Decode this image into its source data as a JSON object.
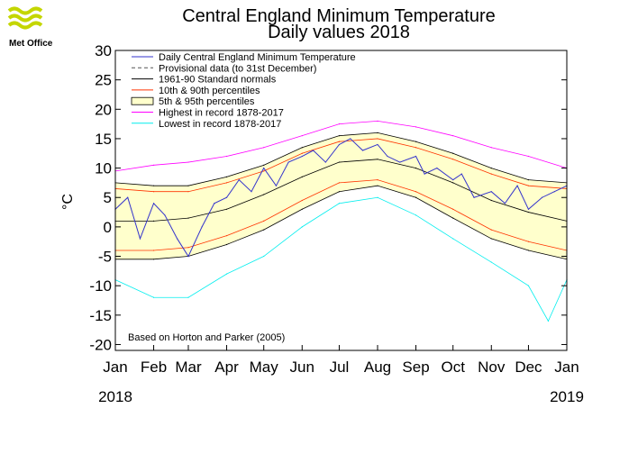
{
  "logo": {
    "text": "Met Office",
    "color": "#c4d600"
  },
  "chart_data": {
    "type": "line",
    "title": "Central England Minimum Temperature",
    "subtitle": "Daily values 2018",
    "ylabel": "°C",
    "ylim": [
      -21,
      30
    ],
    "yticks": [
      30,
      25,
      20,
      15,
      10,
      5,
      0,
      -5,
      -10,
      -15,
      -20
    ],
    "ytick_labels": [
      "30",
      "25",
      "20",
      "15",
      "10",
      "5",
      "0",
      "-5",
      "-10",
      "-15",
      "-20"
    ],
    "xlim": [
      0,
      365
    ],
    "month_labels": [
      "Jan",
      "Feb",
      "Mar",
      "Apr",
      "May",
      "Jun",
      "Jul",
      "Aug",
      "Sep",
      "Oct",
      "Nov",
      "Dec",
      "Jan"
    ],
    "month_starts": [
      0,
      31,
      59,
      90,
      120,
      151,
      181,
      212,
      243,
      273,
      304,
      334,
      365
    ],
    "year_left": "2018",
    "year_right": "2019",
    "note": "Based on Horton and Parker (2005)",
    "legend_position": "top-left",
    "legend": [
      {
        "label": "Daily Central England Minimum Temperature",
        "color": "#3333cc",
        "style": "line"
      },
      {
        "label": "Provisional data (to 31st December)",
        "color": "#555555",
        "style": "dashed"
      },
      {
        "label": "1961-90 Standard normals",
        "color": "#000000",
        "style": "line"
      },
      {
        "label": "10th & 90th percentiles",
        "color": "#ff3300",
        "style": "line"
      },
      {
        "label": "5th & 95th percentiles",
        "color": "#ffffcc",
        "style": "box"
      },
      {
        "label": "Highest in record 1878-2017",
        "color": "#ff00ff",
        "style": "line"
      },
      {
        "label": "Lowest in record 1878-2017",
        "color": "#00eeee",
        "style": "line"
      }
    ],
    "series": [
      {
        "name": "Highest in record 1878-2017",
        "color": "#ff00ff",
        "x": [
          0,
          31,
          59,
          90,
          120,
          151,
          181,
          212,
          243,
          273,
          304,
          334,
          365
        ],
        "y": [
          9.5,
          10.5,
          11,
          12,
          13.5,
          15.5,
          17.5,
          18,
          17,
          15.5,
          13.5,
          12,
          10
        ]
      },
      {
        "name": "5th & 95th percentiles upper",
        "color": "#000000",
        "x": [
          0,
          31,
          59,
          90,
          120,
          151,
          181,
          212,
          243,
          273,
          304,
          334,
          365
        ],
        "y": [
          7.5,
          7,
          7,
          8.5,
          10.5,
          13.5,
          15.5,
          16,
          14.5,
          12.5,
          10,
          8,
          7.5
        ]
      },
      {
        "name": "10th & 90th percentiles upper",
        "color": "#ff3300",
        "x": [
          0,
          31,
          59,
          90,
          120,
          151,
          181,
          212,
          243,
          273,
          304,
          334,
          365
        ],
        "y": [
          6.5,
          6,
          6,
          7.5,
          9.5,
          12.5,
          14.5,
          15,
          13.5,
          11.5,
          9,
          7,
          6.5
        ]
      },
      {
        "name": "1961-90 Standard normals",
        "color": "#000000",
        "x": [
          0,
          31,
          59,
          90,
          120,
          151,
          181,
          212,
          243,
          273,
          304,
          334,
          365
        ],
        "y": [
          1,
          1,
          1.5,
          3,
          5.5,
          8.5,
          11,
          11.5,
          10,
          7.5,
          4.5,
          2.5,
          1
        ]
      },
      {
        "name": "10th & 90th percentiles lower",
        "color": "#ff3300",
        "x": [
          0,
          31,
          59,
          90,
          120,
          151,
          181,
          212,
          243,
          273,
          304,
          334,
          365
        ],
        "y": [
          -4,
          -4,
          -3.5,
          -1.5,
          1,
          4.5,
          7.5,
          8,
          6,
          3,
          -0.5,
          -2.5,
          -4
        ]
      },
      {
        "name": "5th & 95th percentiles lower",
        "color": "#000000",
        "x": [
          0,
          31,
          59,
          90,
          120,
          151,
          181,
          212,
          243,
          273,
          304,
          334,
          365
        ],
        "y": [
          -5.5,
          -5.5,
          -5,
          -3,
          -0.5,
          3,
          6,
          7,
          5,
          1.5,
          -2,
          -4,
          -5.5
        ]
      },
      {
        "name": "Lowest in record 1878-2017",
        "color": "#00eeee",
        "x": [
          0,
          31,
          59,
          90,
          120,
          151,
          181,
          212,
          243,
          273,
          304,
          334,
          350,
          365
        ],
        "y": [
          -9,
          -12,
          -12,
          -8,
          -5,
          0,
          4,
          5,
          2,
          -2,
          -6,
          -10,
          -16,
          -9
        ]
      },
      {
        "name": "Daily Central England Minimum Temperature",
        "color": "#3333cc",
        "x": [
          0,
          10,
          20,
          31,
          40,
          50,
          59,
          70,
          80,
          90,
          100,
          110,
          120,
          130,
          140,
          151,
          160,
          170,
          181,
          190,
          200,
          212,
          220,
          230,
          243,
          250,
          260,
          273,
          280,
          290,
          304,
          315,
          325,
          334,
          345,
          355,
          365
        ],
        "y": [
          3,
          5,
          -2,
          4,
          2,
          -2,
          -5,
          0,
          4,
          5,
          8,
          6,
          10,
          7,
          11,
          12,
          13,
          11,
          14,
          15,
          13,
          14,
          12,
          11,
          12,
          9,
          10,
          8,
          9,
          5,
          6,
          4,
          7,
          3,
          5,
          6,
          7
        ]
      }
    ]
  }
}
